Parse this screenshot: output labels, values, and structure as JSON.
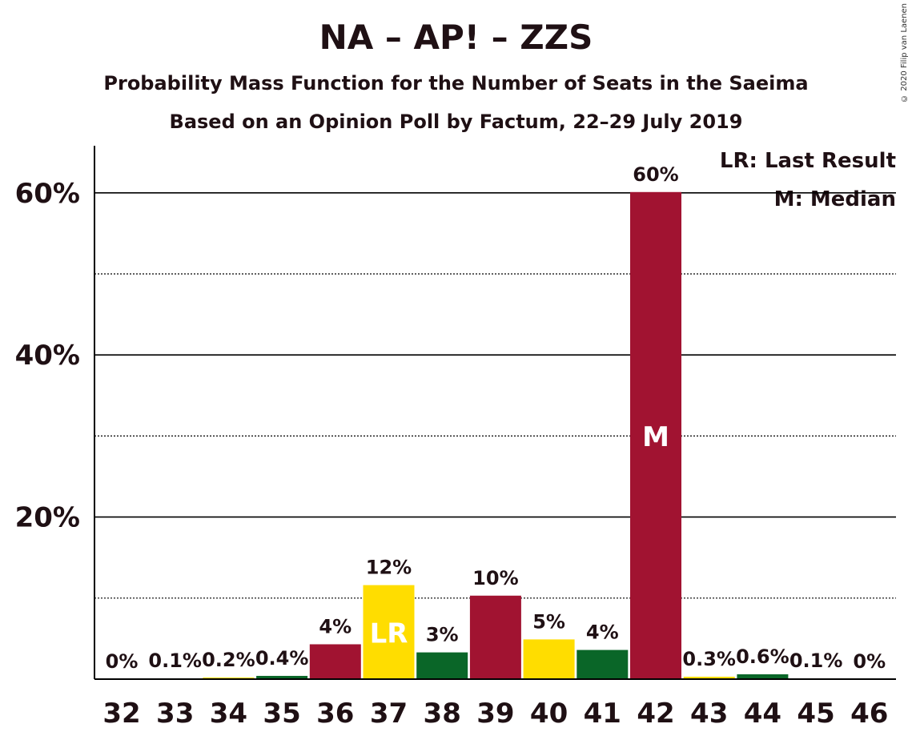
{
  "title": "NA – AP! – ZZS",
  "subtitle": "Probability Mass Function for the Number of Seats in the Saeima",
  "subtitle2": "Based on an Opinion Poll by Factum, 22–29 July 2019",
  "copyright": "© 2020 Filip van Laenen",
  "legend": {
    "last_result": "LR: Last Result",
    "median": "M: Median"
  },
  "colors": {
    "party": "#A11331",
    "last_result": "#FFDD00",
    "alternate": "#0A6628"
  },
  "chart_data": {
    "type": "bar",
    "title": "NA – AP! – ZZS",
    "categories": [
      "32",
      "33",
      "34",
      "35",
      "36",
      "37",
      "38",
      "39",
      "40",
      "41",
      "42",
      "43",
      "44",
      "45",
      "46"
    ],
    "values": [
      0,
      0.1,
      0.2,
      0.4,
      4.3,
      11.6,
      3.3,
      10.3,
      4.9,
      3.6,
      60.1,
      0.3,
      0.6,
      0.1,
      0
    ],
    "data_labels": [
      "0%",
      "0.1%",
      "0.2%",
      "0.4%",
      "4%",
      "12%",
      "3%",
      "10%",
      "5%",
      "4%",
      "60%",
      "0.3%",
      "0.6%",
      "0.1%",
      "0%"
    ],
    "bar_colors": [
      "#FFDD00",
      "#0A6628",
      "#FFDD00",
      "#0A6628",
      "#A11331",
      "#FFDD00",
      "#0A6628",
      "#A11331",
      "#FFDD00",
      "#0A6628",
      "#A11331",
      "#FFDD00",
      "#0A6628",
      "#A11331",
      "#FFDD00"
    ],
    "markers": [
      {
        "category": "37",
        "label": "LR",
        "color": "#ffffff"
      },
      {
        "category": "42",
        "label": "M",
        "color": "#ffffff"
      }
    ],
    "ylim": [
      0,
      65
    ],
    "yticks": [
      20,
      40,
      60
    ],
    "ytick_labels": [
      "20%",
      "40%",
      "60%"
    ],
    "minor_gridlines": [
      10,
      30,
      50
    ],
    "grid": true,
    "legend_position": "top-right"
  }
}
